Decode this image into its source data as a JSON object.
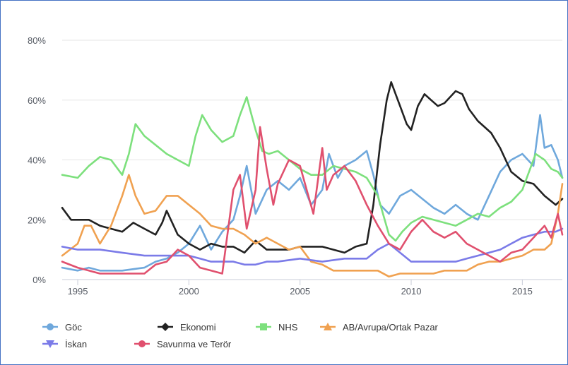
{
  "chart_data": {
    "type": "line",
    "title": "",
    "xlabel": "",
    "ylabel": "",
    "xlim": [
      1994.3,
      2016.8
    ],
    "ylim": [
      0,
      80
    ],
    "y_ticks": [
      "0%",
      "20%",
      "40%",
      "60%",
      "80%"
    ],
    "y_tick_values": [
      0,
      20,
      40,
      60,
      80
    ],
    "x_ticks": [
      "1995",
      "2000",
      "2005",
      "2010",
      "2015"
    ],
    "x_tick_values": [
      1995,
      2000,
      2005,
      2010,
      2015
    ],
    "grid": "horizontal",
    "legend_position": "bottom",
    "series": [
      {
        "name": "Göc",
        "color": "#6fa8dc",
        "x": [
          1994.3,
          1995,
          1995.5,
          1996,
          1997,
          1998,
          1998.5,
          1999,
          1999.5,
          2000,
          2000.5,
          2001,
          2001.5,
          2002,
          2002.3,
          2002.6,
          2003,
          2003.5,
          2004,
          2004.5,
          2005,
          2005.5,
          2006,
          2006.3,
          2006.7,
          2007,
          2007.5,
          2008,
          2008.3,
          2008.6,
          2009,
          2009.5,
          2010,
          2010.5,
          2011,
          2011.5,
          2012,
          2012.5,
          2013,
          2013.5,
          2014,
          2014.5,
          2015,
          2015.5,
          2015.8,
          2016,
          2016.3,
          2016.6,
          2016.8
        ],
        "y": [
          4,
          3,
          4,
          3,
          3,
          4,
          6,
          7,
          9,
          12,
          18,
          10,
          16,
          20,
          28,
          38,
          22,
          30,
          33,
          30,
          34,
          25,
          30,
          42,
          34,
          38,
          40,
          43,
          35,
          25,
          22,
          28,
          30,
          27,
          24,
          22,
          25,
          22,
          20,
          28,
          36,
          40,
          42,
          38,
          55,
          44,
          45,
          40,
          34
        ]
      },
      {
        "name": "Ekonomi",
        "color": "#222222",
        "x": [
          1994.3,
          1994.7,
          1995,
          1995.5,
          1996,
          1996.5,
          1997,
          1997.5,
          1998,
          1998.5,
          1998.8,
          1999,
          1999.5,
          2000,
          2000.5,
          2001,
          2001.5,
          2002,
          2002.5,
          2003,
          2003.5,
          2004,
          2004.5,
          2005,
          2005.5,
          2006,
          2006.5,
          2007,
          2007.5,
          2008,
          2008.3,
          2008.6,
          2008.9,
          2009.1,
          2009.3,
          2009.5,
          2009.8,
          2010,
          2010.3,
          2010.6,
          2010.9,
          2011.2,
          2011.5,
          2012,
          2012.3,
          2012.6,
          2013,
          2013.3,
          2013.6,
          2014,
          2014.5,
          2015,
          2015.5,
          2016,
          2016.5,
          2016.8
        ],
        "y": [
          24,
          20,
          20,
          20,
          18,
          17,
          16,
          19,
          17,
          15,
          19,
          23,
          15,
          12,
          10,
          12,
          11,
          11,
          9,
          13,
          10,
          10,
          10,
          11,
          11,
          11,
          10,
          9,
          11,
          12,
          25,
          45,
          60,
          66,
          62,
          58,
          52,
          50,
          58,
          62,
          60,
          58,
          59,
          63,
          62,
          57,
          53,
          51,
          49,
          44,
          36,
          33,
          32,
          28,
          25,
          27
        ]
      },
      {
        "name": "NHS",
        "color": "#7de07d",
        "x": [
          1994.3,
          1995,
          1995.5,
          1996,
          1996.5,
          1997,
          1997.3,
          1997.6,
          1998,
          1998.5,
          1999,
          1999.5,
          2000,
          2000.3,
          2000.6,
          2001,
          2001.5,
          2002,
          2002.3,
          2002.6,
          2003,
          2003.3,
          2003.6,
          2004,
          2004.5,
          2005,
          2005.5,
          2006,
          2006.5,
          2007,
          2007.5,
          2008,
          2008.5,
          2009,
          2009.3,
          2009.6,
          2010,
          2010.5,
          2011,
          2011.5,
          2012,
          2012.5,
          2013,
          2013.5,
          2014,
          2014.5,
          2015,
          2015.3,
          2015.6,
          2016,
          2016.3,
          2016.6,
          2016.8
        ],
        "y": [
          35,
          34,
          38,
          41,
          40,
          35,
          42,
          52,
          48,
          45,
          42,
          40,
          38,
          48,
          55,
          50,
          46,
          48,
          55,
          61,
          50,
          43,
          42,
          43,
          40,
          37,
          35,
          35,
          38,
          37,
          36,
          34,
          28,
          15,
          13,
          16,
          19,
          21,
          20,
          19,
          18,
          20,
          22,
          21,
          24,
          26,
          30,
          36,
          42,
          40,
          37,
          36,
          34
        ]
      },
      {
        "name": "AB/Avrupa/Ortak Pazar",
        "color": "#f0a150",
        "x": [
          1994.3,
          1995,
          1995.3,
          1995.6,
          1996,
          1996.5,
          1997,
          1997.3,
          1997.6,
          1998,
          1998.5,
          1999,
          1999.5,
          2000,
          2000.5,
          2001,
          2001.5,
          2002,
          2002.5,
          2003,
          2003.5,
          2004,
          2004.5,
          2005,
          2005.5,
          2006,
          2006.5,
          2007,
          2007.5,
          2008,
          2008.5,
          2009,
          2009.5,
          2010,
          2010.5,
          2011,
          2011.5,
          2012,
          2012.5,
          2013,
          2013.5,
          2014,
          2014.5,
          2015,
          2015.5,
          2016,
          2016.3,
          2016.6,
          2016.8
        ],
        "y": [
          8,
          12,
          18,
          18,
          12,
          18,
          28,
          35,
          28,
          22,
          23,
          28,
          28,
          25,
          22,
          18,
          17,
          17,
          15,
          12,
          14,
          12,
          10,
          11,
          6,
          5,
          3,
          3,
          3,
          3,
          3,
          1,
          2,
          2,
          2,
          2,
          3,
          3,
          3,
          5,
          6,
          6,
          7,
          8,
          10,
          10,
          12,
          22,
          32
        ]
      },
      {
        "name": "İskan",
        "color": "#7b7be8",
        "x": [
          1994.3,
          1995,
          1995.5,
          1996,
          1997,
          1998,
          1999,
          2000,
          2000.5,
          2001,
          2001.5,
          2002,
          2002.5,
          2003,
          2003.5,
          2004,
          2005,
          2006,
          2007,
          2008,
          2008.5,
          2009,
          2009.5,
          2010,
          2011,
          2012,
          2012.5,
          2013,
          2013.5,
          2014,
          2014.5,
          2015,
          2015.5,
          2016,
          2016.5,
          2016.8
        ],
        "y": [
          11,
          10,
          10,
          10,
          9,
          8,
          8,
          8,
          7,
          6,
          6,
          6,
          5,
          5,
          6,
          6,
          7,
          6,
          7,
          7,
          10,
          12,
          9,
          6,
          6,
          6,
          7,
          8,
          9,
          10,
          12,
          14,
          15,
          16,
          16,
          17
        ]
      },
      {
        "name": "Savunma ve Terör",
        "color": "#e0506e",
        "x": [
          1994.3,
          1995,
          1995.5,
          1996,
          1997,
          1998,
          1998.5,
          1999,
          1999.5,
          2000,
          2000.5,
          2001,
          2001.5,
          2002,
          2002.3,
          2002.6,
          2003,
          2003.2,
          2003.5,
          2003.8,
          2004,
          2004.5,
          2005,
          2005.3,
          2005.6,
          2006,
          2006.2,
          2006.5,
          2007,
          2007.5,
          2008,
          2008.5,
          2009,
          2009.5,
          2010,
          2010.5,
          2011,
          2011.5,
          2012,
          2012.5,
          2013,
          2013.5,
          2014,
          2014.5,
          2015,
          2015.5,
          2016,
          2016.3,
          2016.6,
          2016.8
        ],
        "y": [
          6,
          4,
          3,
          2,
          2,
          2,
          5,
          6,
          10,
          8,
          4,
          3,
          2,
          30,
          35,
          17,
          30,
          51,
          37,
          25,
          32,
          40,
          38,
          30,
          22,
          44,
          30,
          35,
          38,
          33,
          25,
          18,
          12,
          10,
          16,
          20,
          16,
          14,
          16,
          12,
          10,
          8,
          6,
          9,
          10,
          14,
          18,
          14,
          22,
          15
        ]
      }
    ]
  }
}
